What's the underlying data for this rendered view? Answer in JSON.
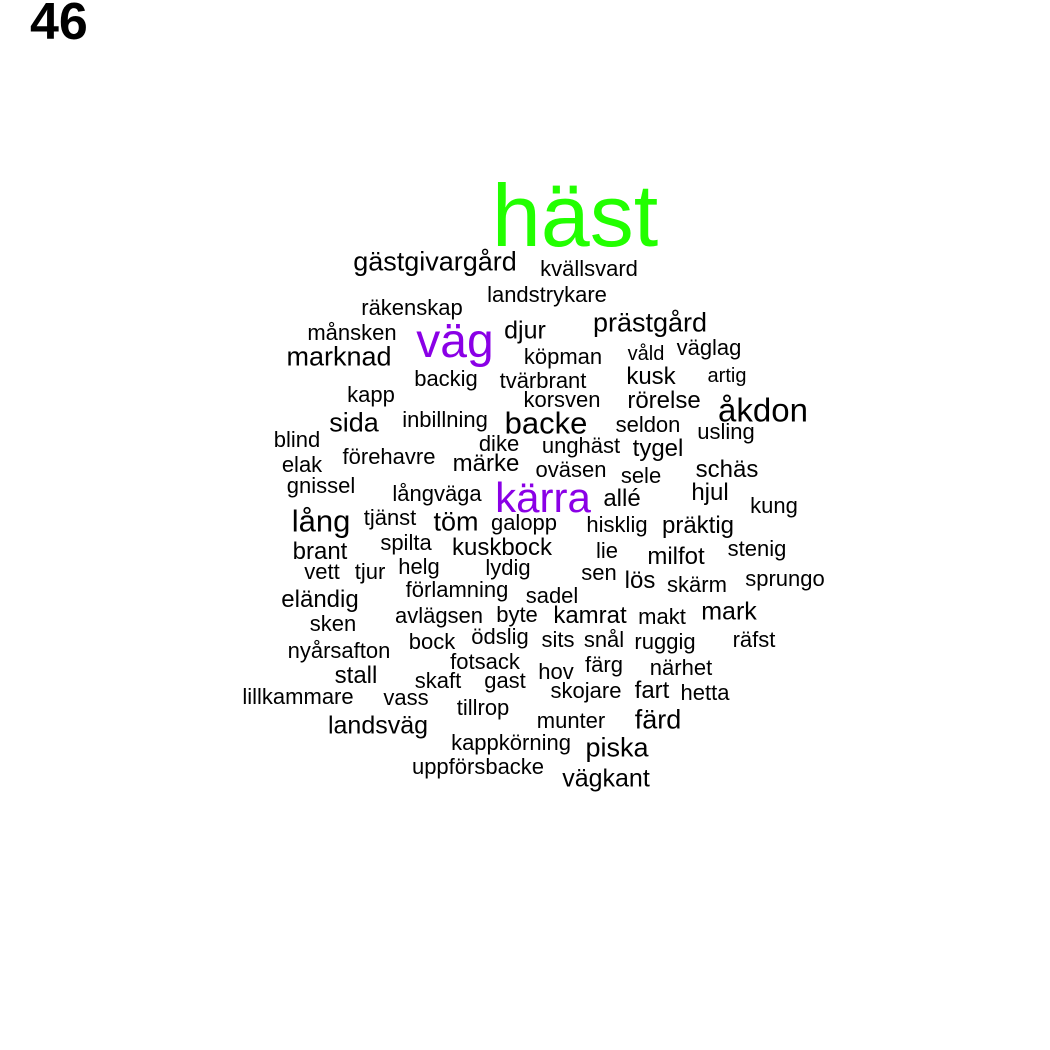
{
  "panel_number": "46",
  "colors": {
    "default": "#000000",
    "top": "#22ff00",
    "second": "#8a00e6"
  },
  "words": [
    {
      "text": "häst",
      "color": "top"
    },
    {
      "text": "gästgivargård",
      "color": "default"
    },
    {
      "text": "kvällsvard",
      "color": "default"
    },
    {
      "text": "landstrykare",
      "color": "default"
    },
    {
      "text": "räkenskap",
      "color": "default"
    },
    {
      "text": "prästgård",
      "color": "default"
    },
    {
      "text": "månsken",
      "color": "default"
    },
    {
      "text": "väg",
      "color": "second"
    },
    {
      "text": "djur",
      "color": "default"
    },
    {
      "text": "marknad",
      "color": "default"
    },
    {
      "text": "köpman",
      "color": "default"
    },
    {
      "text": "våld",
      "color": "default"
    },
    {
      "text": "väglag",
      "color": "default"
    },
    {
      "text": "backig",
      "color": "default"
    },
    {
      "text": "tvärbrant",
      "color": "default"
    },
    {
      "text": "kusk",
      "color": "default"
    },
    {
      "text": "artig",
      "color": "default"
    },
    {
      "text": "kapp",
      "color": "default"
    },
    {
      "text": "korsven",
      "color": "default"
    },
    {
      "text": "rörelse",
      "color": "default"
    },
    {
      "text": "åkdon",
      "color": "default"
    },
    {
      "text": "sida",
      "color": "default"
    },
    {
      "text": "inbillning",
      "color": "default"
    },
    {
      "text": "backe",
      "color": "default"
    },
    {
      "text": "seldon",
      "color": "default"
    },
    {
      "text": "usling",
      "color": "default"
    },
    {
      "text": "blind",
      "color": "default"
    },
    {
      "text": "dike",
      "color": "default"
    },
    {
      "text": "unghäst",
      "color": "default"
    },
    {
      "text": "tygel",
      "color": "default"
    },
    {
      "text": "förehavre",
      "color": "default"
    },
    {
      "text": "elak",
      "color": "default"
    },
    {
      "text": "märke",
      "color": "default"
    },
    {
      "text": "oväsen",
      "color": "default"
    },
    {
      "text": "sele",
      "color": "default"
    },
    {
      "text": "schäs",
      "color": "default"
    },
    {
      "text": "gnissel",
      "color": "default"
    },
    {
      "text": "långväga",
      "color": "default"
    },
    {
      "text": "kärra",
      "color": "second"
    },
    {
      "text": "allé",
      "color": "default"
    },
    {
      "text": "hjul",
      "color": "default"
    },
    {
      "text": "kung",
      "color": "default"
    },
    {
      "text": "lång",
      "color": "default"
    },
    {
      "text": "tjänst",
      "color": "default"
    },
    {
      "text": "töm",
      "color": "default"
    },
    {
      "text": "galopp",
      "color": "default"
    },
    {
      "text": "hisklig",
      "color": "default"
    },
    {
      "text": "präktig",
      "color": "default"
    },
    {
      "text": "spilta",
      "color": "default"
    },
    {
      "text": "brant",
      "color": "default"
    },
    {
      "text": "kuskbock",
      "color": "default"
    },
    {
      "text": "lie",
      "color": "default"
    },
    {
      "text": "milfot",
      "color": "default"
    },
    {
      "text": "stenig",
      "color": "default"
    },
    {
      "text": "vett",
      "color": "default"
    },
    {
      "text": "tjur",
      "color": "default"
    },
    {
      "text": "helg",
      "color": "default"
    },
    {
      "text": "lydig",
      "color": "default"
    },
    {
      "text": "sen",
      "color": "default"
    },
    {
      "text": "lös",
      "color": "default"
    },
    {
      "text": "skärm",
      "color": "default"
    },
    {
      "text": "sprungo",
      "color": "default"
    },
    {
      "text": "förlamning",
      "color": "default"
    },
    {
      "text": "sadel",
      "color": "default"
    },
    {
      "text": "eländig",
      "color": "default"
    },
    {
      "text": "avlägsen",
      "color": "default"
    },
    {
      "text": "byte",
      "color": "default"
    },
    {
      "text": "kamrat",
      "color": "default"
    },
    {
      "text": "makt",
      "color": "default"
    },
    {
      "text": "mark",
      "color": "default"
    },
    {
      "text": "sken",
      "color": "default"
    },
    {
      "text": "ödslig",
      "color": "default"
    },
    {
      "text": "sits",
      "color": "default"
    },
    {
      "text": "snål",
      "color": "default"
    },
    {
      "text": "ruggig",
      "color": "default"
    },
    {
      "text": "räfst",
      "color": "default"
    },
    {
      "text": "nyårsafton",
      "color": "default"
    },
    {
      "text": "bock",
      "color": "default"
    },
    {
      "text": "fotsack",
      "color": "default"
    },
    {
      "text": "hov",
      "color": "default"
    },
    {
      "text": "färg",
      "color": "default"
    },
    {
      "text": "närhet",
      "color": "default"
    },
    {
      "text": "stall",
      "color": "default"
    },
    {
      "text": "skaft",
      "color": "default"
    },
    {
      "text": "gast",
      "color": "default"
    },
    {
      "text": "skojare",
      "color": "default"
    },
    {
      "text": "fart",
      "color": "default"
    },
    {
      "text": "hetta",
      "color": "default"
    },
    {
      "text": "lillkammare",
      "color": "default"
    },
    {
      "text": "vass",
      "color": "default"
    },
    {
      "text": "tillrop",
      "color": "default"
    },
    {
      "text": "landsväg",
      "color": "default"
    },
    {
      "text": "munter",
      "color": "default"
    },
    {
      "text": "färd",
      "color": "default"
    },
    {
      "text": "kappkörning",
      "color": "default"
    },
    {
      "text": "piska",
      "color": "default"
    },
    {
      "text": "uppförsbacke",
      "color": "default"
    },
    {
      "text": "vägkant",
      "color": "default"
    }
  ]
}
